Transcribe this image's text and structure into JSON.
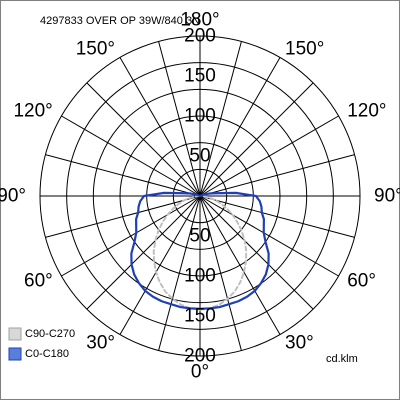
{
  "chart_data": {
    "type": "polar",
    "title": "4297833 OVER OP 39W/840 3N",
    "unit": "cd.klm",
    "radial_ticks": [
      50,
      100,
      150,
      200
    ],
    "radial_max": 200,
    "angle_labels": [
      {
        "text": "0°",
        "angle": 0
      },
      {
        "text": "30°",
        "angle": 30
      },
      {
        "text": "30°",
        "angle": -30
      },
      {
        "text": "60°",
        "angle": 60
      },
      {
        "text": "60°",
        "angle": -60
      },
      {
        "text": "90°",
        "angle": 90
      },
      {
        "text": "90°",
        "angle": -90
      },
      {
        "text": "120°",
        "angle": 120
      },
      {
        "text": "120°",
        "angle": -120
      },
      {
        "text": "150°",
        "angle": 150
      },
      {
        "text": "150°",
        "angle": -150
      },
      {
        "text": "180°",
        "angle": 180
      }
    ],
    "spoke_step_deg": 15,
    "series": [
      {
        "name": "C90-C270",
        "color": "#c0c0c0",
        "dashed": true,
        "angles": [
          -90,
          -85,
          -80,
          -75,
          -70,
          -65,
          -60,
          -55,
          -50,
          -45,
          -40,
          -35,
          -30,
          -25,
          -20,
          -15,
          -10,
          -5,
          0,
          5,
          10,
          15,
          20,
          25,
          30,
          35,
          40,
          45,
          50,
          55,
          60,
          65,
          70,
          75,
          80,
          85,
          90
        ],
        "values": [
          0,
          5,
          12,
          20,
          28,
          37,
          47,
          57,
          68,
          79,
          90,
          100,
          110,
          119,
          127,
          133,
          138,
          141,
          142,
          141,
          138,
          133,
          127,
          119,
          110,
          100,
          90,
          79,
          68,
          57,
          47,
          37,
          28,
          20,
          12,
          5,
          0
        ]
      },
      {
        "name": "C0-C180",
        "color": "#1f3fb8",
        "dashed": false,
        "angles": [
          -115,
          -110,
          -105,
          -100,
          -95,
          -90,
          -85,
          -80,
          -75,
          -70,
          -65,
          -60,
          -55,
          -50,
          -45,
          -40,
          -35,
          -30,
          -25,
          -20,
          -15,
          -10,
          -5,
          0,
          5,
          10,
          15,
          20,
          25,
          30,
          35,
          40,
          45,
          50,
          55,
          60,
          65,
          70,
          75,
          80,
          85,
          90,
          95,
          100,
          105,
          110,
          115
        ],
        "values": [
          0,
          5,
          12,
          20,
          45,
          70,
          75,
          78,
          80,
          85,
          88,
          92,
          100,
          112,
          121,
          128,
          133,
          137,
          139,
          140,
          140,
          141,
          141,
          141,
          141,
          141,
          140,
          140,
          139,
          137,
          133,
          128,
          121,
          112,
          100,
          92,
          88,
          85,
          80,
          78,
          75,
          70,
          45,
          20,
          12,
          5,
          0
        ]
      }
    ],
    "legend": [
      {
        "label": "C90-C270",
        "color": "#d8d8d8",
        "border": "#a0a0a0"
      },
      {
        "label": "C0-C180",
        "color": "#5b7fd8",
        "border": "#1f3fb8"
      }
    ],
    "legend_position": "bottom-left",
    "grid": true
  }
}
